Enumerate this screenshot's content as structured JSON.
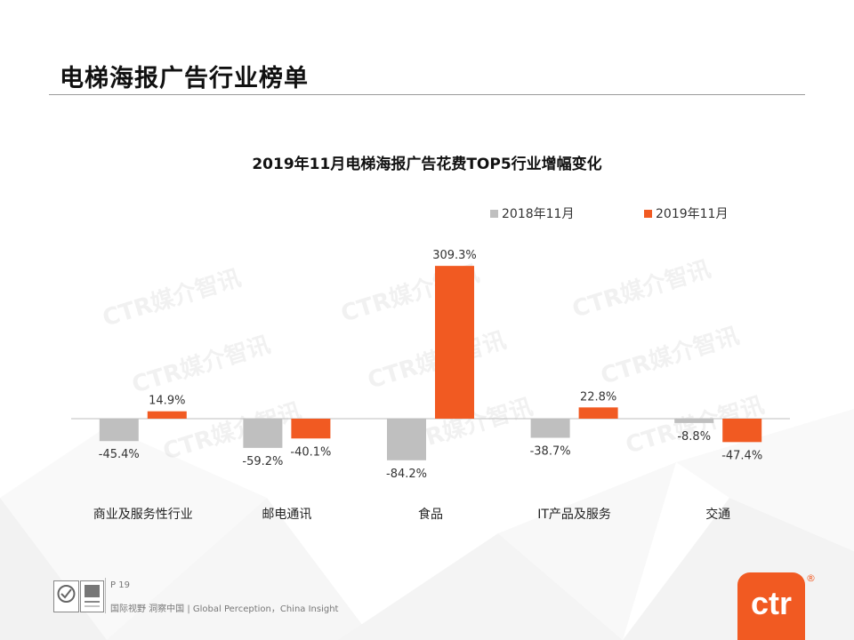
{
  "page": {
    "title": "电梯海报广告行业榜单",
    "page_number": "P 19",
    "tagline": "国际视野 洞察中国 | Global Perception，China Insight",
    "watermark": "CTR媒介智讯",
    "logo_text": "ctr",
    "logo_mark": "®"
  },
  "colors": {
    "series_2018": "#bfbfbf",
    "series_2019": "#f15a22",
    "accent": "#f15a22"
  },
  "chart_data": {
    "type": "bar",
    "title": "2019年11月电梯海报广告花费TOP5行业增幅变化",
    "categories": [
      "商业及服务性行业",
      "邮电通讯",
      "食品",
      "IT产品及服务",
      "交通"
    ],
    "series": [
      {
        "name": "2018年11月",
        "values": [
          -45.4,
          -59.2,
          -84.2,
          -38.7,
          -8.8
        ]
      },
      {
        "name": "2019年11月",
        "values": [
          14.9,
          -40.1,
          309.3,
          22.8,
          -47.4
        ]
      }
    ],
    "value_format": "percent_1dp",
    "legend_position": "top-right",
    "xlabel": "",
    "ylabel": "",
    "grid": false
  }
}
